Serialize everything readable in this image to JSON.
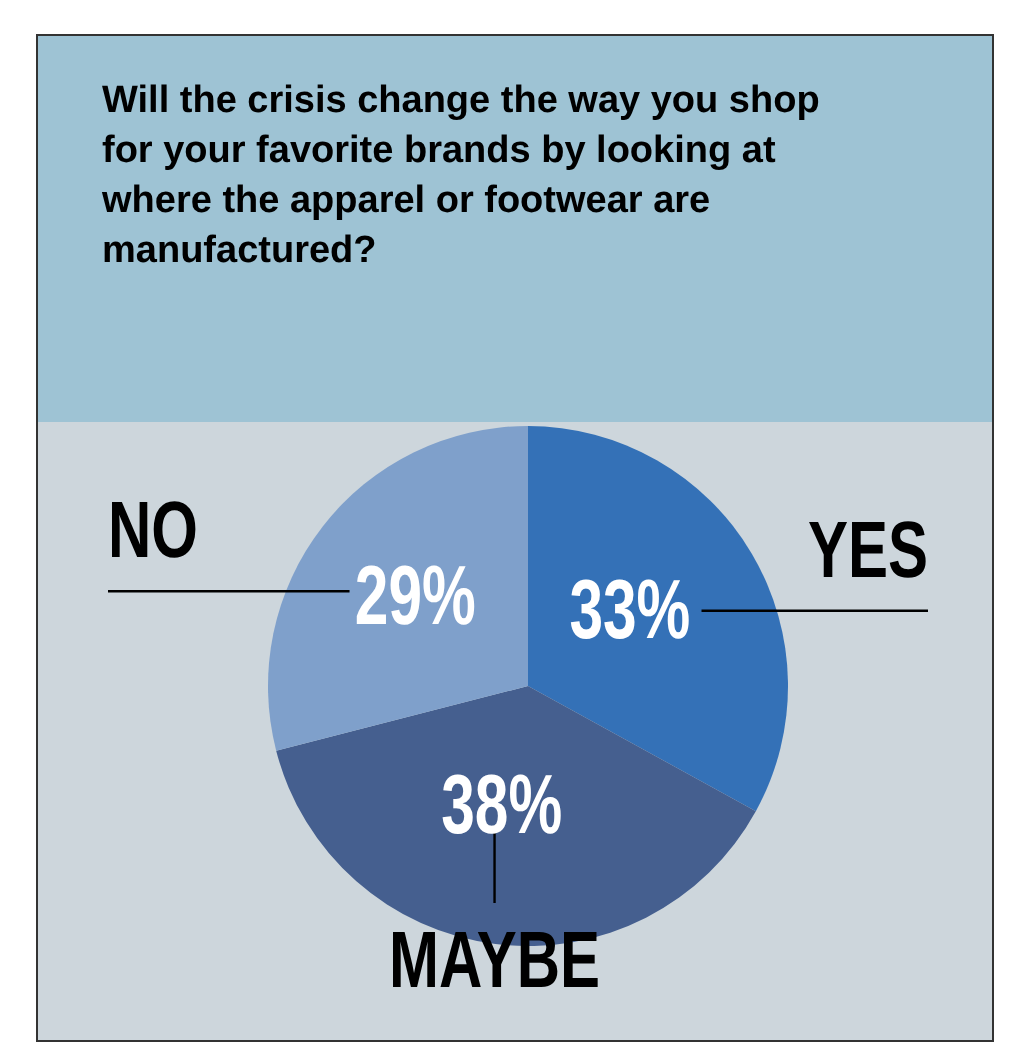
{
  "chart_data": {
    "type": "pie",
    "title": "Will the crisis change the way you shop for your favorite brands by looking at where the apparel or footwear are manufactured?",
    "categories": [
      "YES",
      "MAYBE",
      "NO"
    ],
    "values": [
      33,
      38,
      29
    ],
    "value_labels": [
      "33%",
      "38%",
      "29%"
    ],
    "colors": [
      "#3471b7",
      "#455f8f",
      "#7fa0cb"
    ],
    "legend": false
  }
}
